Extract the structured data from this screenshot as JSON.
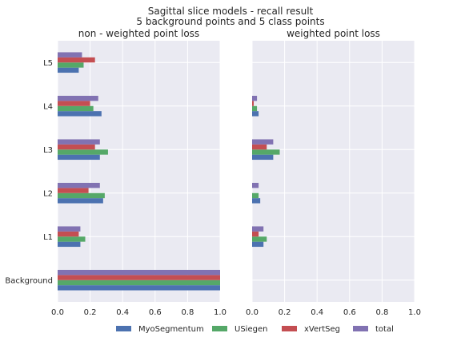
{
  "figure": {
    "title_line1": "Sagittal slice models - recall result",
    "title_line2": "5 background points and 5 class points"
  },
  "chart_data": [
    {
      "type": "bar",
      "orientation": "horizontal",
      "title": "non - weighted point loss",
      "xlim": [
        0,
        1.0
      ],
      "xticks": [
        "0.0",
        "0.2",
        "0.4",
        "0.6",
        "0.8",
        "1.0"
      ],
      "categories": [
        "Background",
        "L1",
        "L2",
        "L3",
        "L4",
        "L5"
      ],
      "series": [
        {
          "name": "MyoSegmentum",
          "color": "#4c72b0",
          "values": [
            1.0,
            0.14,
            0.28,
            0.26,
            0.27,
            0.13
          ]
        },
        {
          "name": "USiegen",
          "color": "#55a868",
          "values": [
            1.0,
            0.17,
            0.29,
            0.31,
            0.22,
            0.16
          ]
        },
        {
          "name": "xVertSeg",
          "color": "#c44e52",
          "values": [
            1.0,
            0.13,
            0.19,
            0.23,
            0.2,
            0.23
          ]
        },
        {
          "name": "total",
          "color": "#8172b2",
          "values": [
            1.0,
            0.14,
            0.26,
            0.26,
            0.25,
            0.15
          ]
        }
      ],
      "grid": true
    },
    {
      "type": "bar",
      "orientation": "horizontal",
      "title": "weighted point loss",
      "xlim": [
        0,
        1.0
      ],
      "xticks": [
        "0.0",
        "0.2",
        "0.4",
        "0.6",
        "0.8",
        "1.0"
      ],
      "categories": [
        "Background",
        "L1",
        "L2",
        "L3",
        "L4",
        "L5"
      ],
      "series": [
        {
          "name": "MyoSegmentum",
          "color": "#4c72b0",
          "values": [
            0.0,
            0.07,
            0.05,
            0.13,
            0.04,
            0.0
          ]
        },
        {
          "name": "USiegen",
          "color": "#55a868",
          "values": [
            0.0,
            0.09,
            0.04,
            0.17,
            0.03,
            0.0
          ]
        },
        {
          "name": "xVertSeg",
          "color": "#c44e52",
          "values": [
            0.0,
            0.04,
            0.0,
            0.09,
            0.01,
            0.0
          ]
        },
        {
          "name": "total",
          "color": "#8172b2",
          "values": [
            0.0,
            0.07,
            0.04,
            0.13,
            0.03,
            0.0
          ]
        }
      ],
      "grid": true
    }
  ],
  "legend": {
    "placement": "bottom",
    "items": [
      "MyoSegmentum",
      "USiegen",
      "xVertSeg",
      "total"
    ]
  }
}
